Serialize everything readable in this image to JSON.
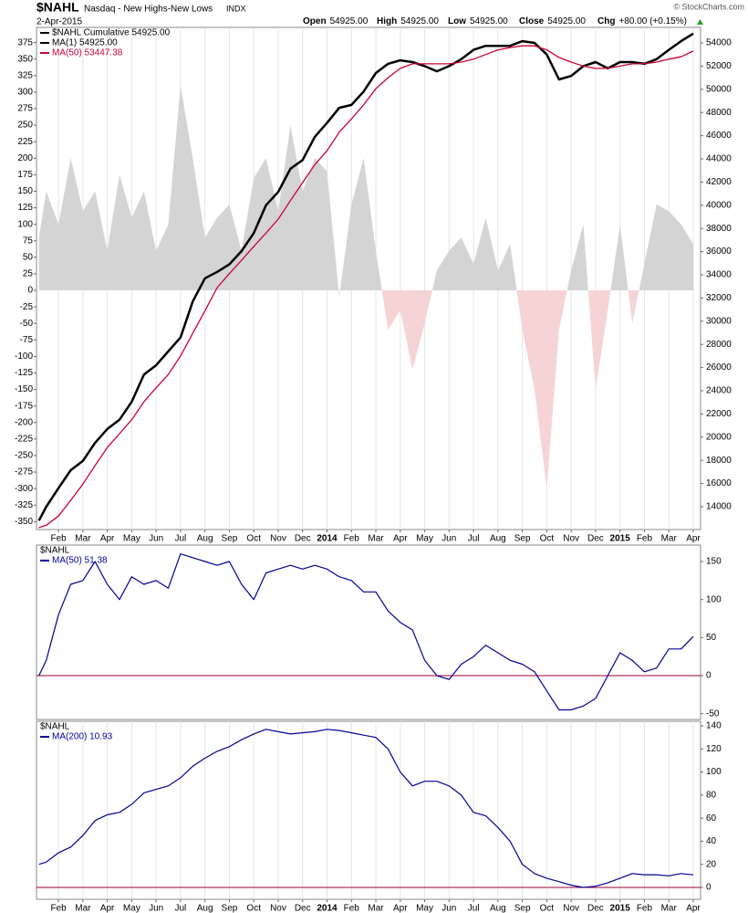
{
  "header": {
    "symbol": "$NAHL",
    "name": "Nasdaq - New Highs-New Lows",
    "exchange": "INDX",
    "date": "2-Apr-2015",
    "copyright": "© StockCharts.com",
    "quote": [
      {
        "label": "Open",
        "value": "54925.00"
      },
      {
        "label": "High",
        "value": "54925.00"
      },
      {
        "label": "Low",
        "value": "54925.00"
      },
      {
        "label": "Close",
        "value": "54925.00"
      },
      {
        "label": "Chg",
        "value": "+80.00 (+0.15%)"
      }
    ]
  },
  "chart_data": [
    {
      "type": "line",
      "grid": true,
      "x": [
        0.2,
        0.5,
        1,
        1.5,
        2,
        2.5,
        3,
        3.5,
        4,
        4.5,
        5,
        5.5,
        6,
        6.5,
        7,
        7.5,
        8,
        8.5,
        9,
        9.5,
        10,
        10.5,
        11,
        11.5,
        12,
        12.5,
        13,
        13.5,
        14,
        14.5,
        15,
        15.5,
        16,
        16.5,
        17,
        17.5,
        18,
        18.5,
        19,
        19.5,
        20,
        20.5,
        21,
        21.5,
        22,
        22.5,
        23,
        23.5,
        24,
        24.5,
        25,
        25.5,
        26,
        26.5,
        27
      ],
      "xlim": [
        0.1,
        27.3
      ],
      "xticks": [
        {
          "value": 1,
          "label": "Feb"
        },
        {
          "value": 2,
          "label": "Mar"
        },
        {
          "value": 3,
          "label": "Apr"
        },
        {
          "value": 4,
          "label": "May"
        },
        {
          "value": 5,
          "label": "Jun"
        },
        {
          "value": 6,
          "label": "Jul"
        },
        {
          "value": 7,
          "label": "Aug"
        },
        {
          "value": 8,
          "label": "Sep"
        },
        {
          "value": 9,
          "label": "Oct"
        },
        {
          "value": 10,
          "label": "Nov"
        },
        {
          "value": 11,
          "label": "Dec"
        },
        {
          "value": 12,
          "label": "2014"
        },
        {
          "value": 13,
          "label": "Feb"
        },
        {
          "value": 14,
          "label": "Mar"
        },
        {
          "value": 15,
          "label": "Apr"
        },
        {
          "value": 16,
          "label": "May"
        },
        {
          "value": 17,
          "label": "Jun"
        },
        {
          "value": 18,
          "label": "Jul"
        },
        {
          "value": 19,
          "label": "Aug"
        },
        {
          "value": 20,
          "label": "Sep"
        },
        {
          "value": 21,
          "label": "Oct"
        },
        {
          "value": 22,
          "label": "Nov"
        },
        {
          "value": 23,
          "label": "Dec"
        },
        {
          "value": 24,
          "label": "2015"
        },
        {
          "value": 25,
          "label": "Feb"
        },
        {
          "value": 26,
          "label": "Mar"
        },
        {
          "value": 27,
          "label": "Apr"
        }
      ],
      "ylim": [
        -362,
        398
      ],
      "yticks": [
        375,
        350,
        325,
        300,
        275,
        250,
        225,
        200,
        175,
        150,
        125,
        100,
        75,
        50,
        25,
        0,
        -25,
        -50,
        -75,
        -100,
        -125,
        -150,
        -175,
        -200,
        -225,
        -250,
        -275,
        -300,
        -325,
        -350
      ],
      "y2lim": [
        12031,
        55339
      ],
      "y2ticks": [
        54000,
        52000,
        50000,
        48000,
        46000,
        44000,
        42000,
        40000,
        38000,
        36000,
        34000,
        32000,
        30000,
        28000,
        26000,
        24000,
        22000,
        20000,
        18000,
        16000,
        14000
      ],
      "series": [
        {
          "style": "area",
          "color": "#d4d4d4",
          "negative_color": "#f6d4d6",
          "values": [
            80,
            150,
            100,
            200,
            120,
            150,
            60,
            175,
            110,
            150,
            60,
            100,
            310,
            200,
            80,
            110,
            130,
            60,
            170,
            200,
            120,
            250,
            150,
            200,
            180,
            -10,
            130,
            200,
            60,
            -60,
            -30,
            -120,
            -50,
            30,
            60,
            80,
            40,
            110,
            30,
            70,
            -60,
            -150,
            -300,
            -60,
            30,
            100,
            -150,
            -30,
            100,
            -50,
            40,
            130,
            120,
            100,
            70
          ]
        },
        {
          "name": "$NAHL Cumulative 54925.00",
          "ma_label": "MA(1) 54925.00",
          "axis": "y2",
          "color": "#000000",
          "width": 2.5,
          "values": [
            12800,
            14000,
            15600,
            17150,
            17950,
            19500,
            20700,
            21500,
            23050,
            25400,
            26200,
            27400,
            28600,
            31700,
            33700,
            34250,
            34900,
            36050,
            37600,
            40000,
            41150,
            43150,
            43900,
            45900,
            47100,
            48400,
            48650,
            49800,
            51400,
            52200,
            52500,
            52350,
            52000,
            51550,
            52000,
            52600,
            53400,
            53750,
            53750,
            53750,
            54150,
            54000,
            53000,
            50850,
            51150,
            52000,
            52350,
            51800,
            52350,
            52350,
            52200,
            52600,
            53400,
            54150,
            54800
          ]
        },
        {
          "name": "MA(50) 53447.38",
          "axis": "y2",
          "color": "#cc0033",
          "width": 1.3,
          "values": [
            12200,
            12400,
            13200,
            14550,
            15950,
            17550,
            19100,
            20300,
            21500,
            23050,
            24250,
            25400,
            27000,
            28950,
            30900,
            32900,
            34100,
            35250,
            36450,
            37600,
            38800,
            40400,
            41950,
            43500,
            44700,
            46300,
            47450,
            48650,
            50050,
            51000,
            51800,
            52200,
            52200,
            52200,
            52200,
            52350,
            52600,
            53000,
            53400,
            53600,
            53750,
            53750,
            53400,
            52750,
            52350,
            52000,
            51800,
            51800,
            52000,
            52200,
            52200,
            52350,
            52600,
            52800,
            53300
          ]
        }
      ]
    },
    {
      "type": "line",
      "title": "$NAHL",
      "x": [
        0.2,
        0.5,
        1,
        1.5,
        2,
        2.5,
        3,
        3.5,
        4,
        4.5,
        5,
        5.5,
        6,
        6.5,
        7,
        7.5,
        8,
        8.5,
        9,
        9.5,
        10,
        10.5,
        11,
        11.5,
        12,
        12.5,
        13,
        13.5,
        14,
        14.5,
        15,
        15.5,
        16,
        16.5,
        17,
        17.5,
        18,
        18.5,
        19,
        19.5,
        20,
        20.5,
        21,
        21.5,
        22,
        22.5,
        23,
        23.5,
        24,
        24.5,
        25,
        25.5,
        26,
        26.5,
        27
      ],
      "xlim": [
        0.1,
        27.3
      ],
      "ylim": [
        -57.6,
        171.6
      ],
      "yticks": [
        150,
        100,
        50,
        0,
        -50
      ],
      "reference_line": {
        "value": 0,
        "color": "#990033"
      },
      "series": [
        {
          "name": "MA(50) 51.38",
          "color": "#000099",
          "width": 1.2,
          "values": [
            0,
            20,
            80,
            120,
            125,
            150,
            120,
            100,
            130,
            120,
            125,
            115,
            160,
            155,
            150,
            145,
            150,
            120,
            100,
            135,
            140,
            145,
            140,
            145,
            140,
            130,
            125,
            110,
            110,
            85,
            70,
            60,
            20,
            0,
            -5,
            15,
            25,
            40,
            30,
            20,
            15,
            5,
            -20,
            -45,
            -45,
            -40,
            -30,
            0,
            30,
            20,
            5,
            10,
            35,
            35,
            51.38
          ]
        }
      ]
    },
    {
      "type": "line",
      "title": "$NAHL",
      "grid": true,
      "x": [
        0.2,
        0.5,
        1,
        1.5,
        2,
        2.5,
        3,
        3.5,
        4,
        4.5,
        5,
        5.5,
        6,
        6.5,
        7,
        7.5,
        8,
        8.5,
        9,
        9.5,
        10,
        10.5,
        11,
        11.5,
        12,
        12.5,
        13,
        13.5,
        14,
        14.5,
        15,
        15.5,
        16,
        16.5,
        17,
        17.5,
        18,
        18.5,
        19,
        19.5,
        20,
        20.5,
        21,
        21.5,
        22,
        22.5,
        23,
        23.5,
        24,
        24.5,
        25,
        25.5,
        26,
        26.5,
        27
      ],
      "xlim": [
        0.1,
        27.3
      ],
      "xticks": [
        {
          "value": 1,
          "label": "Feb"
        },
        {
          "value": 2,
          "label": "Mar"
        },
        {
          "value": 3,
          "label": "Apr"
        },
        {
          "value": 4,
          "label": "May"
        },
        {
          "value": 5,
          "label": "Jun"
        },
        {
          "value": 6,
          "label": "Jul"
        },
        {
          "value": 7,
          "label": "Aug"
        },
        {
          "value": 8,
          "label": "Sep"
        },
        {
          "value": 9,
          "label": "Oct"
        },
        {
          "value": 10,
          "label": "Nov"
        },
        {
          "value": 11,
          "label": "Dec"
        },
        {
          "value": 12,
          "label": "2014"
        },
        {
          "value": 13,
          "label": "Feb"
        },
        {
          "value": 14,
          "label": "Mar"
        },
        {
          "value": 15,
          "label": "Apr"
        },
        {
          "value": 16,
          "label": "May"
        },
        {
          "value": 17,
          "label": "Jun"
        },
        {
          "value": 18,
          "label": "Jul"
        },
        {
          "value": 19,
          "label": "Aug"
        },
        {
          "value": 20,
          "label": "Sep"
        },
        {
          "value": 21,
          "label": "Oct"
        },
        {
          "value": 22,
          "label": "Nov"
        },
        {
          "value": 23,
          "label": "Dec"
        },
        {
          "value": 24,
          "label": "2015"
        },
        {
          "value": 25,
          "label": "Feb"
        },
        {
          "value": 26,
          "label": "Mar"
        },
        {
          "value": 27,
          "label": "Apr"
        }
      ],
      "ylim": [
        -10.3,
        144
      ],
      "yticks": [
        140,
        120,
        100,
        80,
        60,
        40,
        20,
        0
      ],
      "reference_line": {
        "value": 0,
        "color": "#990033"
      },
      "series": [
        {
          "name": "MA(200) 10.93",
          "color": "#000099",
          "width": 1.2,
          "values": [
            20,
            22,
            30,
            35,
            45,
            58,
            63,
            65,
            72,
            82,
            85,
            88,
            95,
            105,
            112,
            118,
            122,
            128,
            133,
            137,
            135,
            133,
            134,
            135,
            137,
            136,
            134,
            132,
            130,
            120,
            100,
            88,
            92,
            92,
            88,
            80,
            65,
            62,
            52,
            40,
            20,
            12,
            8,
            5,
            2,
            0,
            1,
            4,
            8,
            12,
            11,
            11,
            10,
            12,
            10.93
          ]
        }
      ]
    }
  ]
}
